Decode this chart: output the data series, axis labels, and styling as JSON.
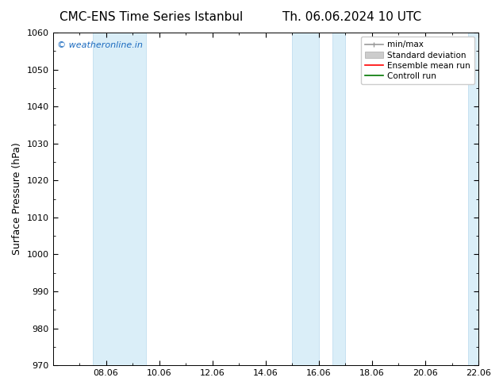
{
  "title_left": "CMC-ENS Time Series Istanbul",
  "title_right": "Th. 06.06.2024 10 UTC",
  "ylabel": "Surface Pressure (hPa)",
  "ylim": [
    970,
    1060
  ],
  "yticks": [
    970,
    980,
    990,
    1000,
    1010,
    1020,
    1030,
    1040,
    1050,
    1060
  ],
  "x_min": 0,
  "x_max": 16,
  "xtick_labels": [
    "08.06",
    "10.06",
    "12.06",
    "14.06",
    "16.06",
    "18.06",
    "20.06",
    "22.06"
  ],
  "xtick_positions": [
    2,
    4,
    6,
    8,
    10,
    12,
    14,
    16
  ],
  "shaded_regions": [
    {
      "x_start": 1.5,
      "x_end": 3.5
    },
    {
      "x_start": 9.0,
      "x_end": 10.0
    },
    {
      "x_start": 10.5,
      "x_end": 11.0
    },
    {
      "x_start": 15.6,
      "x_end": 16.0
    }
  ],
  "shaded_color": "#daeef8",
  "shaded_border_color": "#b8d8ed",
  "watermark_text": "© weatheronline.in",
  "watermark_color": "#1a6abf",
  "background_color": "#ffffff",
  "legend_labels": [
    "min/max",
    "Standard deviation",
    "Ensemble mean run",
    "Controll run"
  ],
  "minmax_color": "#999999",
  "std_color": "#cccccc",
  "ensemble_color": "#ff0000",
  "control_color": "#007700",
  "title_fontsize": 11,
  "tick_fontsize": 8,
  "ylabel_fontsize": 9,
  "legend_fontsize": 7.5,
  "watermark_fontsize": 8
}
